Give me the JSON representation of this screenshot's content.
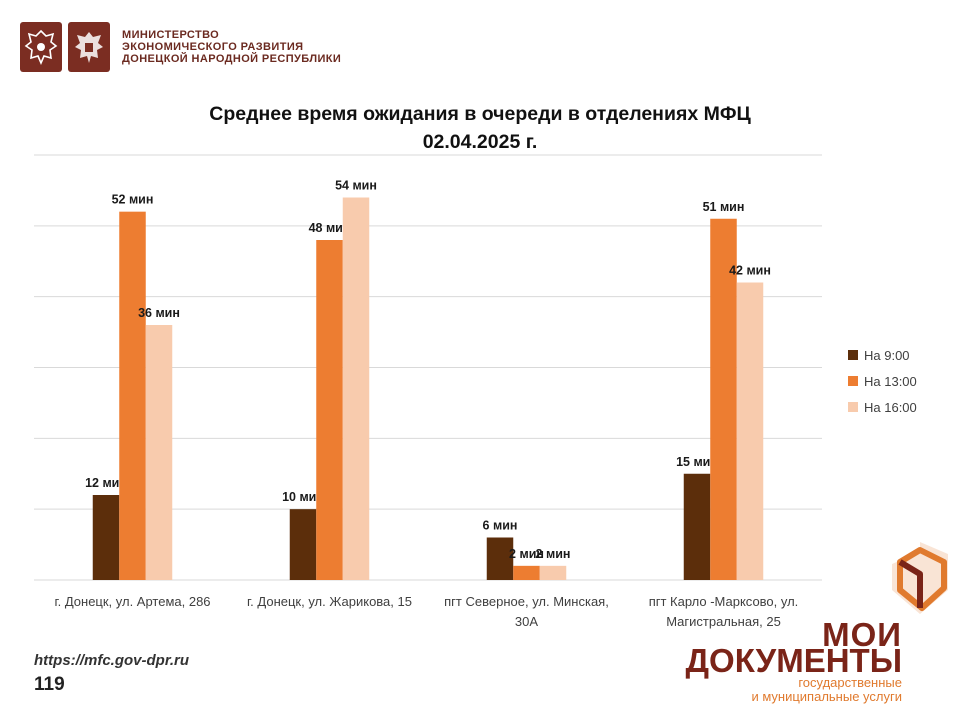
{
  "header": {
    "ministry_lines": [
      "МИНИСТЕРСТВО",
      "ЭКОНОМИЧЕСКОГО РАЗВИТИЯ",
      "ДОНЕЦКОЙ НАРОДНОЙ РЕСПУБЛИКИ"
    ],
    "emblem_color": "#7b2d22"
  },
  "chart_data": {
    "type": "bar",
    "title_line1": "Среднее время ожидания в очереди в отделениях МФЦ",
    "title_line2": "02.04.2025 г.",
    "categories": [
      [
        "г. Донецк, ул. Артема, 286"
      ],
      [
        "г. Донецк, ул. Жарикова, 15"
      ],
      [
        "пгт Северное, ул. Минская,",
        "30А"
      ],
      [
        "пгт Карло -Марксово, ул.",
        "Магистральная, 25"
      ]
    ],
    "series": [
      {
        "name": "На 9:00",
        "color": "#5c2e0b",
        "values": [
          12,
          10,
          6,
          15
        ],
        "labels": [
          "12 мин",
          "10 мин",
          "6 мин",
          "15 мин"
        ]
      },
      {
        "name": "На 13:00",
        "color": "#ed7d31",
        "values": [
          52,
          48,
          2,
          51
        ],
        "labels": [
          "52 мин",
          "48 мин",
          "2 мин",
          "51 мин"
        ]
      },
      {
        "name": "На 16:00",
        "color": "#f8cbad",
        "values": [
          36,
          54,
          2,
          42
        ],
        "labels": [
          "36 мин",
          "54 мин",
          "2 мин",
          "42 мин"
        ]
      }
    ],
    "ylim": [
      0,
      60
    ],
    "grid": true,
    "legend_position": "right"
  },
  "footer": {
    "url": "https://mfc.gov-dpr.ru",
    "page_number": "119"
  },
  "brand": {
    "line1": "МОИ",
    "line2": "ДОКУМЕНТЫ",
    "sub1": "государственные",
    "sub2": "и муниципальные услуги",
    "color_dark": "#7a2418",
    "color_accent": "#e07a2e"
  }
}
